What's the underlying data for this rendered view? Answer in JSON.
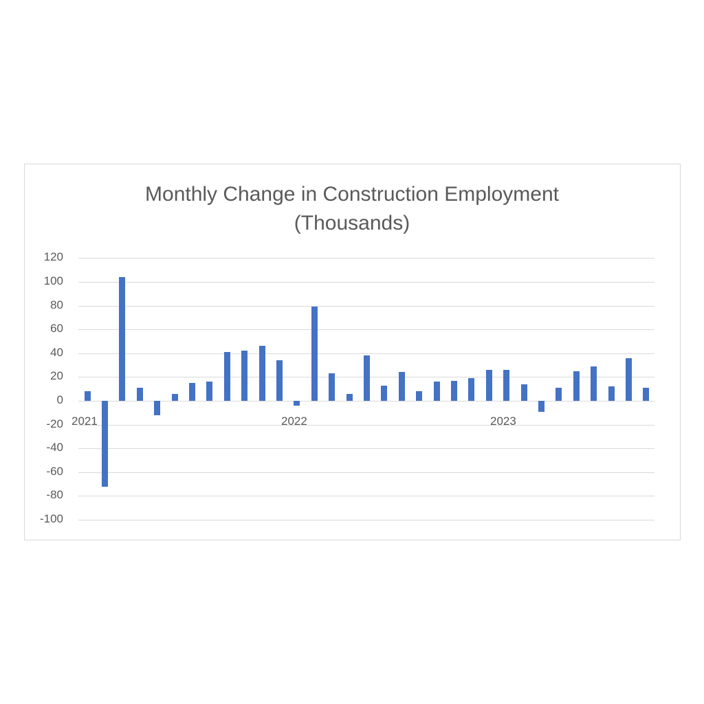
{
  "chart_data": {
    "type": "bar",
    "title": "Monthly Change in Construction Employment (Thousands)",
    "title_lines": [
      "Monthly Change in Construction Employment",
      "(Thousands)"
    ],
    "xlabel": "",
    "ylabel": "",
    "ylim": [
      -100,
      120
    ],
    "yticks": [
      120,
      100,
      80,
      60,
      40,
      20,
      0,
      -20,
      -40,
      -60,
      -80,
      -100
    ],
    "x_group_labels": [
      "2021",
      "2022",
      "2023"
    ],
    "grid": true,
    "legend": null,
    "color": "#4472c4",
    "values": [
      8,
      -72,
      104,
      11,
      -12,
      6,
      15,
      16,
      41,
      42,
      46,
      34,
      -4,
      79,
      23,
      6,
      38,
      13,
      24,
      8,
      16,
      17,
      19,
      26,
      26,
      14,
      -9,
      11,
      25,
      29,
      12,
      36,
      11
    ]
  }
}
